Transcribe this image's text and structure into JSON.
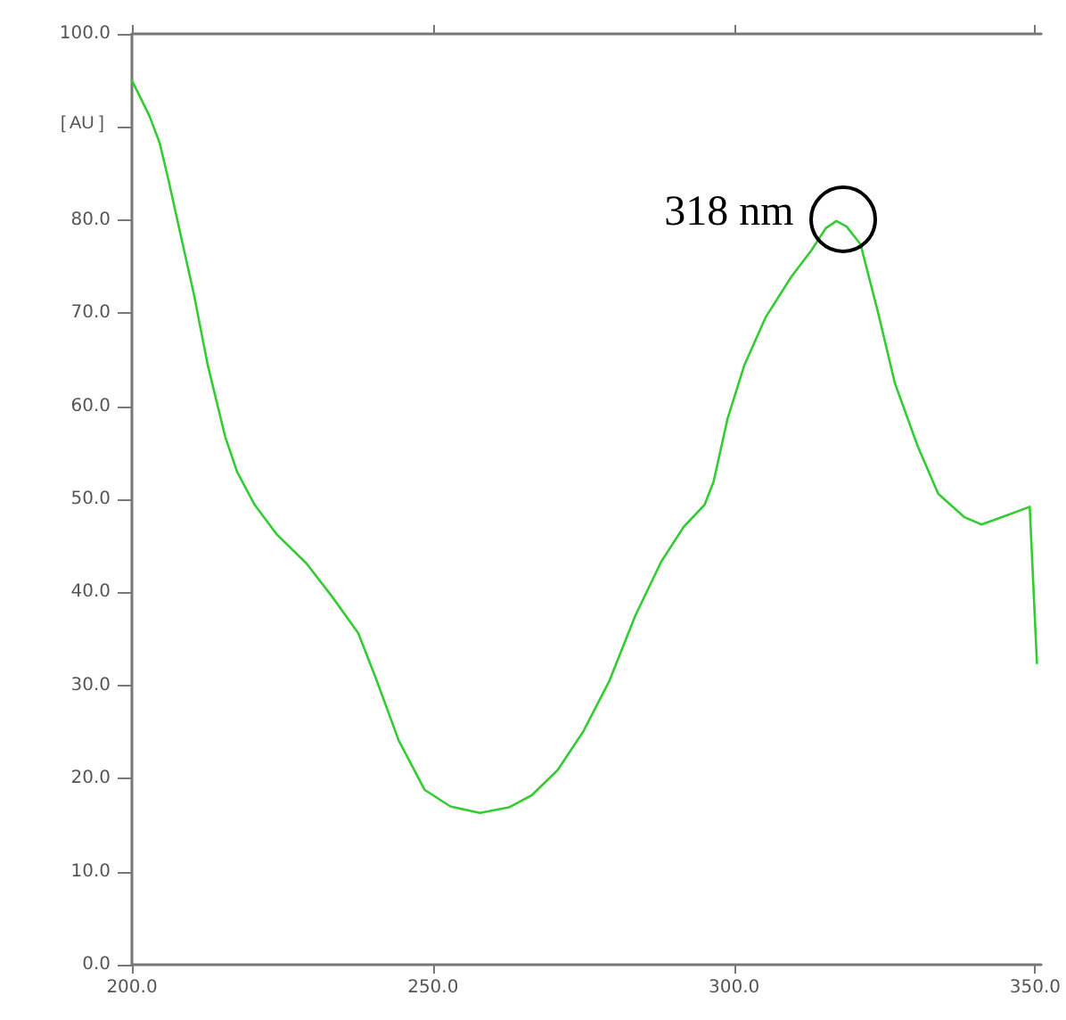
{
  "chart_data": {
    "type": "line",
    "ylabel": "[ AU ]",
    "x": [
      200,
      202.9,
      204.6,
      206,
      208.3,
      210.3,
      212.6,
      215.5,
      217.5,
      220.4,
      224.1,
      229,
      233.3,
      237.6,
      240.5,
      244.3,
      248.6,
      252.9,
      257.8,
      262.6,
      266.4,
      270.7,
      275,
      279.3,
      283.6,
      287.9,
      291.7,
      295.1,
      296.6,
      298.9,
      301.7,
      305.2,
      309.5,
      312.9,
      315.2,
      317,
      318.7,
      321,
      323.9,
      326.7,
      330.5,
      333.9,
      338.2,
      341.1,
      345.4,
      349.1,
      350.3
    ],
    "series": [
      {
        "color": "#33cc33",
        "values": [
          95.0,
          91.2,
          88.3,
          84.5,
          77.8,
          72.0,
          64.4,
          56.7,
          52.9,
          49.4,
          46.2,
          43.1,
          39.5,
          35.6,
          30.8,
          24.1,
          18.8,
          17.0,
          16.3,
          16.9,
          18.2,
          20.9,
          25.1,
          30.5,
          37.5,
          43.3,
          47.1,
          49.4,
          51.9,
          58.6,
          64.4,
          69.5,
          73.9,
          76.8,
          79.1,
          79.9,
          79.3,
          77.4,
          70.1,
          62.5,
          55.7,
          50.6,
          48.1,
          47.3,
          48.3,
          49.2,
          32.4
        ]
      }
    ],
    "xlim": [
      200,
      351
    ],
    "xticks": [
      {
        "value": 200,
        "label": "200.0"
      },
      {
        "value": 250,
        "label": "250.0"
      },
      {
        "value": 300,
        "label": "300.0"
      },
      {
        "value": 350,
        "label": "350.0"
      }
    ],
    "ylim": [
      0,
      100
    ],
    "yticks": [
      {
        "value": 0,
        "label": "0.0"
      },
      {
        "value": 10,
        "label": "10.0"
      },
      {
        "value": 20,
        "label": "20.0"
      },
      {
        "value": 30,
        "label": "30.0"
      },
      {
        "value": 40,
        "label": "40.0"
      },
      {
        "value": 50,
        "label": "50.0"
      },
      {
        "value": 60,
        "label": "60.0"
      },
      {
        "value": 70,
        "label": "70.0"
      },
      {
        "value": 80,
        "label": "80.0"
      },
      {
        "value": 90,
        "label": null
      },
      {
        "value": 100,
        "label": "100.0"
      }
    ],
    "annotations": [
      {
        "text": "318 nm",
        "x": 318,
        "y": 80
      }
    ],
    "grid": false,
    "marker": "none",
    "line_style": "solid"
  }
}
